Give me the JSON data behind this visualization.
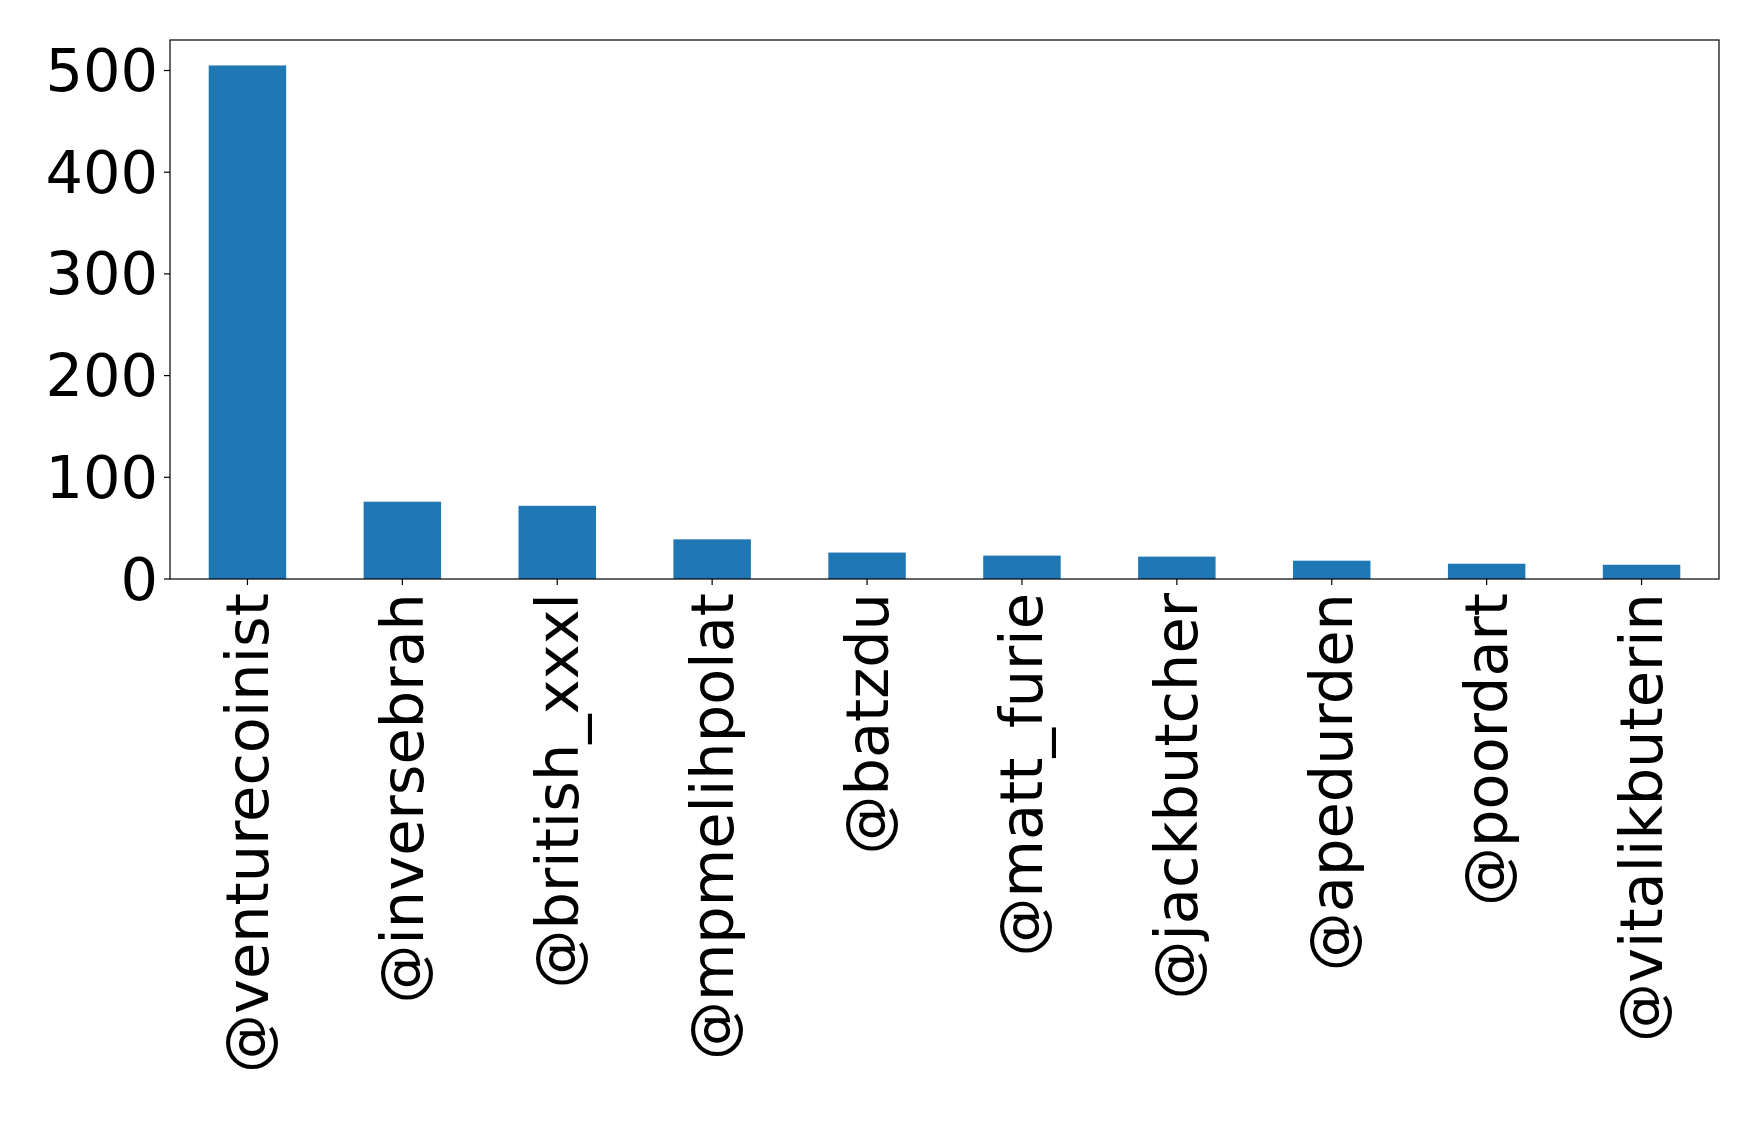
{
  "chart_data": {
    "type": "bar",
    "categories": [
      "@venturecoinist",
      "@inversebrah",
      "@british_xxxl",
      "@mpmelihpolat",
      "@batzdu",
      "@matt_furie",
      "@jackbutcher",
      "@apedurden",
      "@poordart",
      "@vitalikbuterin"
    ],
    "values": [
      505,
      76,
      72,
      39,
      26,
      23,
      22,
      18,
      15,
      14
    ],
    "color": "#1f77b4",
    "ylim": [
      0,
      530
    ],
    "yticks": [
      0,
      100,
      200,
      300,
      400,
      500
    ]
  }
}
